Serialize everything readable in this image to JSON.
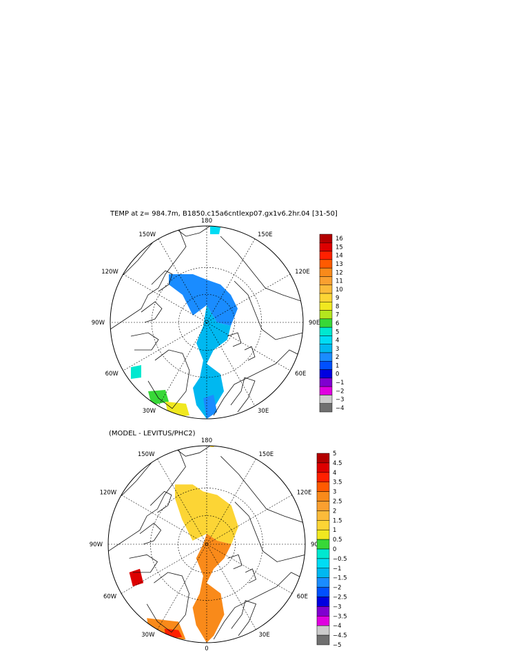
{
  "top_panel": {
    "title": "TEMP at z= 984.7m, B1850.c15a6cntlexp07.gx1v6.2hr.04 [31-50]",
    "longitude_labels": [
      "180",
      "150E",
      "120E",
      "90E",
      "60E",
      "30E",
      "0",
      "30W",
      "60W",
      "90W",
      "120W",
      "150W"
    ],
    "colorbar": {
      "labels": [
        "16",
        "15",
        "14",
        "13",
        "12",
        "11",
        "10",
        "9",
        "8",
        "7",
        "6",
        "5",
        "4",
        "3",
        "2",
        "1",
        "0",
        "−1",
        "−2",
        "−3",
        "−4"
      ],
      "colors": [
        "#b30000",
        "#dd0000",
        "#ff2000",
        "#ff5a00",
        "#f98a1a",
        "#faa030",
        "#fbbb3a",
        "#fcd535",
        "#f0e820",
        "#b4e61e",
        "#38d838",
        "#00e8d0",
        "#00dcf4",
        "#00b8f0",
        "#1a8cff",
        "#0050ff",
        "#0000e0",
        "#8000d0",
        "#e000e0",
        "#cccccc",
        "#707070"
      ]
    }
  },
  "bottom_panel": {
    "title": "(MODEL - LEVITUS/PHC2)",
    "longitude_labels": [
      "180",
      "150E",
      "120E",
      "90E",
      "60E",
      "30E",
      "0",
      "30W",
      "60W",
      "90W",
      "120W",
      "150W"
    ],
    "colorbar": {
      "labels": [
        "5",
        "4.5",
        "4",
        "3.5",
        "3",
        "2.5",
        "2",
        "1.5",
        "1",
        "0.5",
        "0",
        "−0.5",
        "−1",
        "−1.5",
        "−2",
        "−2.5",
        "−3",
        "−3.5",
        "−4",
        "−4.5",
        "−5"
      ],
      "colors": [
        "#b30000",
        "#dd0000",
        "#ff2000",
        "#ff5a00",
        "#f98a1a",
        "#faa030",
        "#fbbb3a",
        "#fcd535",
        "#f0e820",
        "#38d838",
        "#00e8d0",
        "#00dcf4",
        "#00b8f0",
        "#1a8cff",
        "#0050ff",
        "#0000e0",
        "#8000d0",
        "#e000e0",
        "#cccccc",
        "#707070"
      ]
    }
  }
}
